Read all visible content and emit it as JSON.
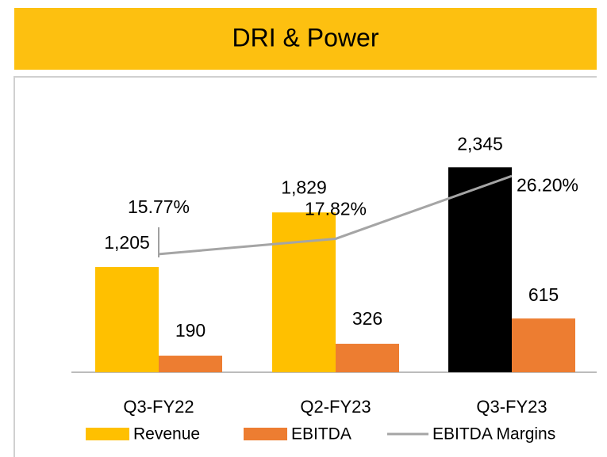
{
  "chart_data": {
    "type": "bar",
    "title": "DRI & Power",
    "categories": [
      "Q3-FY22",
      "Q2-FY23",
      "Q3-FY23"
    ],
    "ylim": [
      0,
      3000
    ],
    "y2lim": [
      0,
      35
    ],
    "series": [
      {
        "name": "Revenue",
        "color": "#FFC000",
        "colors": [
          "#FFC000",
          "#FFC000",
          "#000000"
        ],
        "values": [
          1205,
          1829,
          2345
        ],
        "value_labels": [
          "1,205",
          "1,829",
          "2,345"
        ]
      },
      {
        "name": "EBITDA",
        "color": "#ED7D31",
        "values": [
          190,
          326,
          615
        ]
      },
      {
        "name": "EBITDA Margins",
        "type": "line",
        "axis": "y2",
        "color": "#A5A5A5",
        "values": [
          15.77,
          17.82,
          26.2
        ],
        "value_labels": [
          "15.77%",
          "17.82%",
          "26.20%"
        ]
      }
    ]
  }
}
